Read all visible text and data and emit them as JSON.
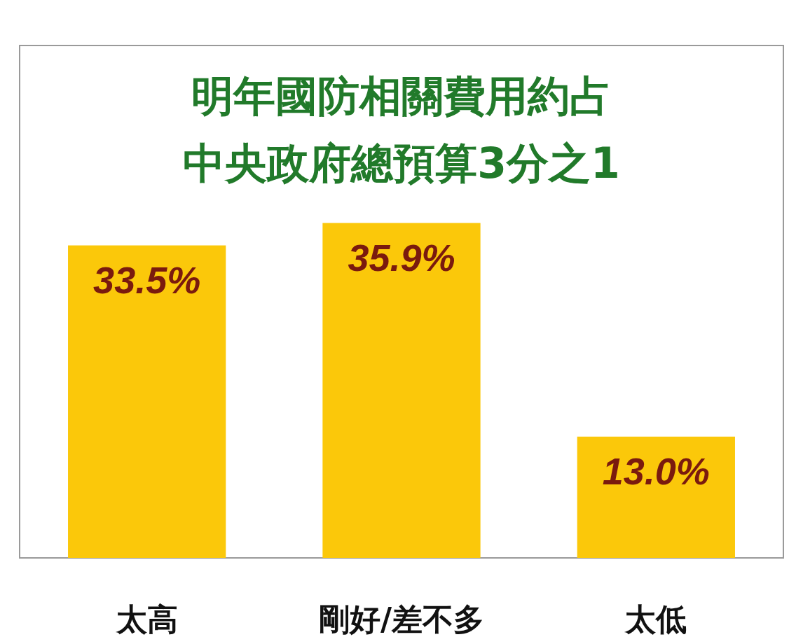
{
  "chart_data": {
    "type": "bar",
    "title": "明年國防相關費用約占中央政府總預算3分之1",
    "categories": [
      "太高",
      "剛好/差不多",
      "太低"
    ],
    "values": [
      33.5,
      35.9,
      13.0
    ],
    "value_labels": [
      "33.5%",
      "35.9%",
      "13.0%"
    ],
    "color": "#fbc80a"
  }
}
